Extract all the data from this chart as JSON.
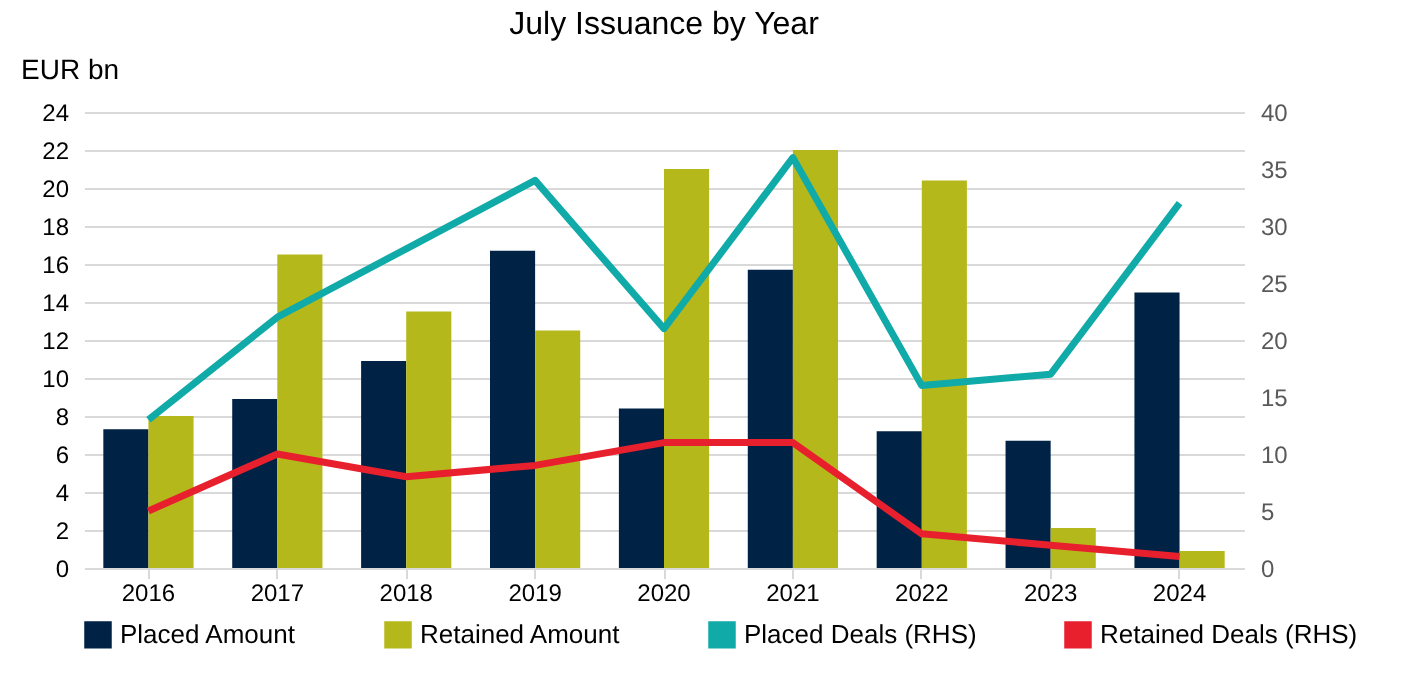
{
  "chart_data": {
    "type": "bar",
    "title": "July Issuance by Year",
    "ylabel": "EUR bn",
    "categories": [
      "2016",
      "2017",
      "2018",
      "2019",
      "2020",
      "2021",
      "2022",
      "2023",
      "2024"
    ],
    "series": [
      {
        "name": "Placed Amount",
        "color": "#002244",
        "values": [
          7.3,
          8.9,
          10.9,
          16.7,
          8.4,
          15.7,
          7.2,
          6.7,
          14.5
        ]
      },
      {
        "name": "Retained Amount",
        "color": "#b5b81a",
        "values": [
          8.0,
          16.5,
          13.5,
          12.5,
          21.0,
          22.0,
          20.4,
          2.1,
          0.9
        ]
      },
      {
        "name": "Placed Deals (RHS)",
        "type": "line",
        "axis": "y2",
        "color": "#10aaa8",
        "values": [
          13,
          22,
          28,
          34,
          21,
          36,
          16,
          17,
          32
        ]
      },
      {
        "name": "Retained Deals (RHS)",
        "type": "line",
        "axis": "y2",
        "color": "#e8202e",
        "values": [
          5,
          10,
          8,
          9,
          11,
          11,
          3,
          2,
          1
        ]
      }
    ],
    "ylim": [
      0,
      24
    ],
    "yticks": [
      0,
      2,
      4,
      6,
      8,
      10,
      12,
      14,
      16,
      18,
      20,
      22,
      24
    ],
    "y2lim": [
      0,
      40
    ],
    "y2ticks": [
      0,
      5,
      10,
      15,
      20,
      25,
      30,
      35,
      40
    ],
    "grid": "y",
    "legend": "bottom",
    "marker": "none",
    "line_style": "solid"
  }
}
